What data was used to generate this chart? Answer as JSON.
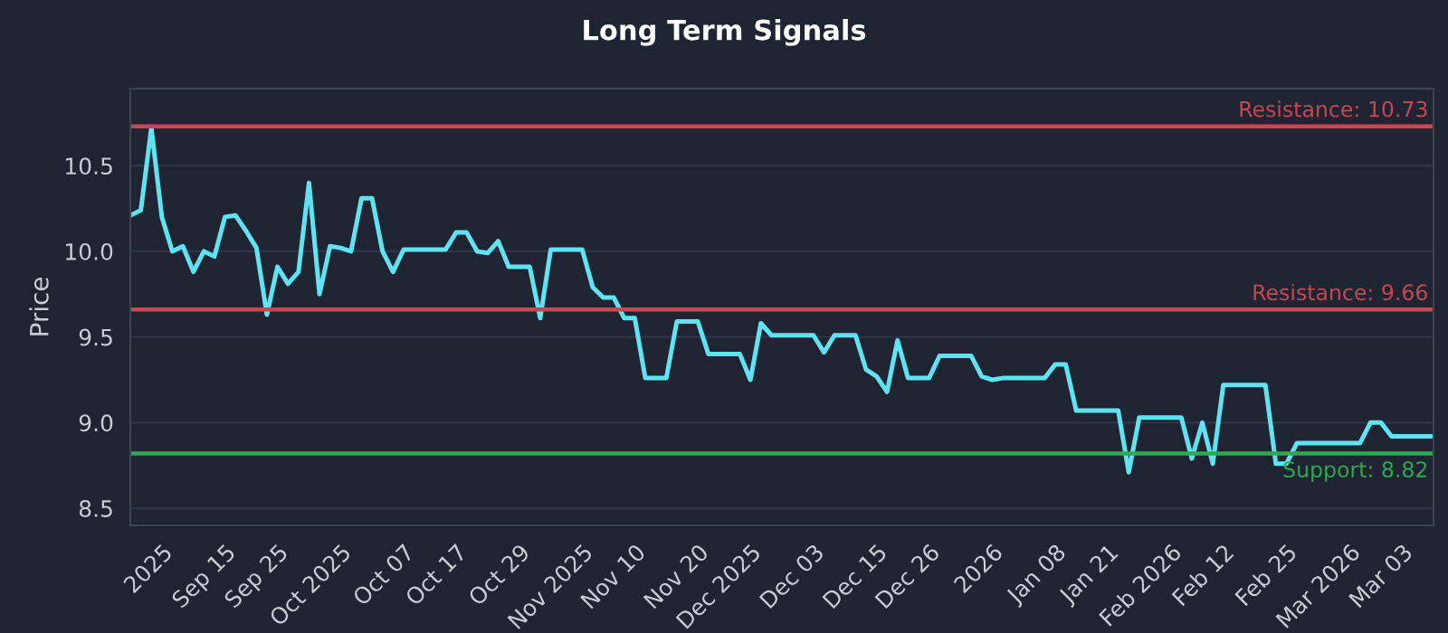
{
  "chart_data": {
    "type": "line",
    "title": "Long Term Signals",
    "ylabel": "Price",
    "categories": [
      null,
      null,
      null,
      "2025",
      null,
      null,
      null,
      null,
      null,
      "Sep 15",
      null,
      null,
      null,
      null,
      "Sep 25",
      null,
      null,
      null,
      null,
      null,
      "Oct 2025",
      null,
      null,
      null,
      null,
      null,
      "Oct 07",
      null,
      null,
      null,
      null,
      "Oct 17",
      null,
      null,
      null,
      null,
      null,
      "Oct 29",
      null,
      null,
      null,
      null,
      null,
      "Nov 2025",
      null,
      null,
      null,
      null,
      "Nov 10",
      null,
      null,
      null,
      null,
      null,
      "Nov 20",
      null,
      null,
      null,
      null,
      "Dec 2025",
      null,
      null,
      null,
      null,
      null,
      "Dec 03",
      null,
      null,
      null,
      null,
      null,
      "Dec 15",
      null,
      null,
      null,
      null,
      "Dec 26",
      null,
      null,
      null,
      null,
      null,
      "2026",
      null,
      null,
      null,
      null,
      null,
      "Jan 08",
      null,
      null,
      null,
      null,
      "Jan 21",
      null,
      null,
      null,
      null,
      null,
      "Feb 2026",
      null,
      null,
      null,
      null,
      "Feb 12",
      null,
      null,
      null,
      null,
      null,
      "Feb 25",
      null,
      null,
      null,
      null,
      null,
      "Mar 2026",
      null,
      null,
      null,
      null,
      "Mar 03",
      null,
      null,
      null
    ],
    "series": [
      {
        "color": "#5fe3f2",
        "values": [
          10.21,
          10.24,
          10.72,
          10.2,
          10.0,
          10.03,
          9.88,
          10.0,
          9.97,
          10.2,
          10.21,
          10.12,
          10.02,
          9.63,
          9.91,
          9.81,
          9.88,
          10.4,
          9.75,
          10.03,
          10.02,
          10.0,
          10.31,
          10.31,
          10.0,
          9.88,
          10.01,
          10.01,
          10.01,
          10.01,
          10.01,
          10.11,
          10.11,
          10.0,
          9.99,
          10.06,
          9.91,
          9.91,
          9.91,
          9.61,
          10.01,
          10.01,
          10.01,
          10.01,
          9.79,
          9.73,
          9.73,
          9.61,
          9.61,
          9.26,
          9.26,
          9.26,
          9.59,
          9.59,
          9.59,
          9.4,
          9.4,
          9.4,
          9.4,
          9.25,
          9.58,
          9.51,
          9.51,
          9.51,
          9.51,
          9.51,
          9.41,
          9.51,
          9.51,
          9.51,
          9.31,
          9.27,
          9.18,
          9.48,
          9.26,
          9.26,
          9.26,
          9.39,
          9.39,
          9.39,
          9.39,
          9.27,
          9.25,
          9.26,
          9.26,
          9.26,
          9.26,
          9.26,
          9.34,
          9.34,
          9.07,
          9.07,
          9.07,
          9.07,
          9.07,
          8.71,
          9.03,
          9.03,
          9.03,
          9.03,
          9.03,
          8.79,
          9.0,
          8.76,
          9.22,
          9.22,
          9.22,
          9.22,
          9.22,
          8.76,
          8.76,
          8.88,
          8.88,
          8.88,
          8.88,
          8.88,
          8.88,
          8.88,
          9.0,
          9.0,
          8.92,
          8.92,
          8.92,
          8.92,
          8.92
        ]
      }
    ],
    "ylim": [
      8.4,
      10.95
    ],
    "yticks": [
      8.5,
      {
        "value": 9.0,
        "label": "9.0"
      },
      9.5,
      {
        "value": 10.0,
        "label": "10.0"
      },
      10.5
    ],
    "ref_lines": [
      {
        "axis": "y",
        "value": 10.73,
        "label": "Resistance: 10.73",
        "color": "#c9464f"
      },
      {
        "axis": "y",
        "value": 9.66,
        "label": "Resistance: 9.66",
        "color": "#c9464f"
      },
      {
        "axis": "y",
        "value": 8.82,
        "label": "Support: 8.82",
        "color": "#2fa84f"
      }
    ],
    "grid": "y",
    "line_style": "solid",
    "marker": "none"
  }
}
